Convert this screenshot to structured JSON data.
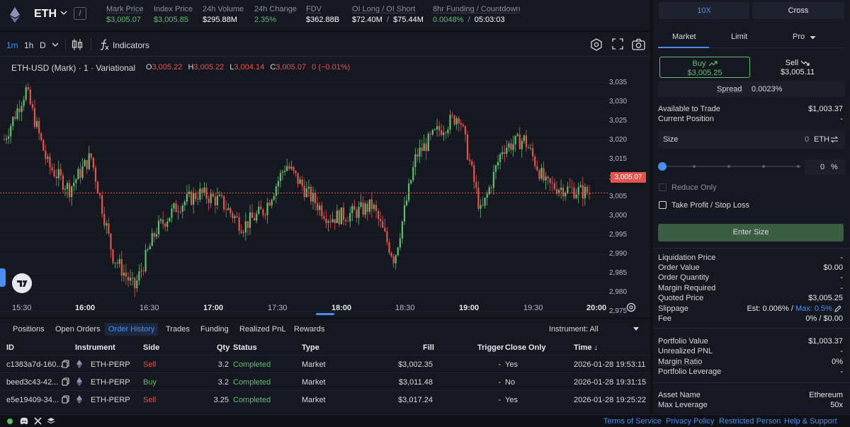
{
  "header": {
    "ticker": "ETH",
    "slash": "/",
    "stats": [
      {
        "label": "Mark Price",
        "value": "$3,005.07",
        "color": "green"
      },
      {
        "label": "Index Price",
        "value": "$3,005.85",
        "color": "green"
      },
      {
        "label": "24h Volume",
        "value": "$295.88M",
        "color": "white"
      },
      {
        "label": "24h Change",
        "value": "2.35%",
        "color": "green"
      },
      {
        "label": "FDV",
        "value": "$362.88B",
        "color": "white"
      },
      {
        "label": "OI Long / OI Short",
        "value_a": "$72.40M",
        "sep": "/",
        "value_b": "$75.44M"
      },
      {
        "label": "8hr Funding / Countdown",
        "value_a": "0.0048%",
        "sep": "/",
        "value_b": "05:03:03"
      }
    ]
  },
  "chart": {
    "timeframes": [
      "1m",
      "1h",
      "D"
    ],
    "active_timeframe": "1m",
    "indicators_label": "Indicators",
    "title": "ETH-USD (Mark) · 1 · Variational",
    "ohlc": {
      "o": "3,005.22",
      "h": "3,005.22",
      "l": "3,004.14",
      "c": "3,005.07",
      "chg": "0 (−0.01%)"
    },
    "current_price_tag": "3,005.07",
    "price_axis": [
      "3,035",
      "3,030",
      "3,025",
      "3,020",
      "3,015",
      "3,010",
      "3,005",
      "3,000",
      "2,995",
      "2,990",
      "2,985",
      "2,980",
      "2,975"
    ],
    "time_axis": [
      {
        "label": "15:30",
        "bold": false
      },
      {
        "label": "16:00",
        "bold": true
      },
      {
        "label": "16:30",
        "bold": false
      },
      {
        "label": "17:00",
        "bold": true
      },
      {
        "label": "17:30",
        "bold": false
      },
      {
        "label": "18:00",
        "bold": true
      },
      {
        "label": "18:30",
        "bold": false
      },
      {
        "label": "19:00",
        "bold": true
      },
      {
        "label": "19:30",
        "bold": false
      },
      {
        "label": "20:00",
        "bold": true
      }
    ],
    "colors": {
      "up": "#5fbf6e",
      "down": "#e5534b",
      "accent": "#4a8ff0"
    }
  },
  "chart_data": {
    "type": "line",
    "title": "ETH-USD (Mark) · 1 · Variational",
    "xlabel": "",
    "ylabel": "",
    "ylim": [
      2973,
      3038
    ],
    "x": [
      "15:30",
      "15:40",
      "15:50",
      "16:00",
      "16:10",
      "16:20",
      "16:30",
      "16:40",
      "16:50",
      "17:00",
      "17:10",
      "17:20",
      "17:30",
      "17:40",
      "17:50",
      "18:00",
      "18:10",
      "18:20",
      "18:30",
      "18:40",
      "18:50",
      "19:00",
      "19:10",
      "19:20",
      "19:30",
      "19:40",
      "19:50",
      "20:00"
    ],
    "series": [
      {
        "name": "ETH-USD Mark",
        "values": [
          3018,
          3030,
          3012,
          3006,
          3014,
          2990,
          2982,
          2996,
          3002,
          3005,
          3003,
          2997,
          3001,
          3012,
          3005,
          2999,
          3000,
          3002,
          2989,
          3014,
          3020,
          3024,
          3000,
          3016,
          3018,
          3007,
          3006,
          3005.07
        ]
      }
    ]
  },
  "bottom": {
    "tabs": [
      "Positions",
      "Open Orders",
      "Order History",
      "Trades",
      "Funding",
      "Realized PnL",
      "Rewards"
    ],
    "active_tab": "Order History",
    "instrument_filter": "Instrument: All",
    "columns": [
      "ID",
      "Instrument",
      "Side",
      "Qty",
      "Status",
      "Type",
      "Fill",
      "Trigger",
      "Close Only",
      "Time ↓"
    ],
    "rows": [
      {
        "id": "c1383a7d-160...",
        "instrument": "ETH-PERP",
        "side": "Sell",
        "qty": "3.2",
        "status": "Completed",
        "type": "Market",
        "fill": "$3,002.35",
        "trigger": "-",
        "close_only": "Yes",
        "time": "2026-01-28 19:53:11"
      },
      {
        "id": "beed3c43-42...",
        "instrument": "ETH-PERP",
        "side": "Buy",
        "qty": "3.2",
        "status": "Completed",
        "type": "Market",
        "fill": "$3,011.48",
        "trigger": "-",
        "close_only": "No",
        "time": "2026-01-28 19:31:15"
      },
      {
        "id": "e5e19409-34...",
        "instrument": "ETH-PERP",
        "side": "Sell",
        "qty": "3.25",
        "status": "Completed",
        "type": "Market",
        "fill": "$3,017.24",
        "trigger": "-",
        "close_only": "Yes",
        "time": "2026-01-28 19:25:22"
      }
    ]
  },
  "footer": {
    "links": [
      "Terms of Service",
      "Privacy Policy",
      "Restricted Person",
      "Help & Support"
    ]
  },
  "order_panel": {
    "leverage": "10X",
    "margin_mode": "Cross",
    "order_tabs": [
      "Market",
      "Limit",
      "Pro"
    ],
    "buy": {
      "label": "Buy",
      "price": "$3,005.25"
    },
    "sell": {
      "label": "Sell",
      "price": "$3,005.11"
    },
    "spread": {
      "label": "Spread",
      "value": "0.0023%"
    },
    "available": {
      "label": "Available to Trade",
      "value": "$1,003.37"
    },
    "position": {
      "label": "Current Position",
      "value": "-"
    },
    "size": {
      "label": "Size",
      "value": "0",
      "unit": "ETH"
    },
    "pct": {
      "value": "0",
      "unit": "%"
    },
    "reduce_only": "Reduce Only",
    "tpsl": "Take Profit / Stop Loss",
    "enter_size": "Enter Size",
    "details": [
      {
        "label": "Liquidation Price",
        "value": "-"
      },
      {
        "label": "Order Value",
        "value": "$0.00"
      },
      {
        "label": "Order Quantity",
        "value": "-"
      },
      {
        "label": "Margin Required",
        "value": "-"
      },
      {
        "label": "Quoted Price",
        "value": "$3,005.25"
      }
    ],
    "slippage": {
      "label": "Slippage",
      "est": "Est: 0.006%",
      "sep": "/",
      "max": "Max: 0.5%"
    },
    "fee": {
      "label": "Fee",
      "value": "0% / $0.00"
    },
    "portfolio": [
      {
        "label": "Portfolio Value",
        "value": "$1,003.37"
      },
      {
        "label": "Unrealized PNL",
        "value": "-"
      },
      {
        "label": "Margin Ratio",
        "value": "0%"
      },
      {
        "label": "Portfolio Leverage",
        "value": "-"
      }
    ],
    "asset": [
      {
        "label": "Asset Name",
        "value": "Ethereum"
      },
      {
        "label": "Max Leverage",
        "value": "50x"
      }
    ]
  }
}
